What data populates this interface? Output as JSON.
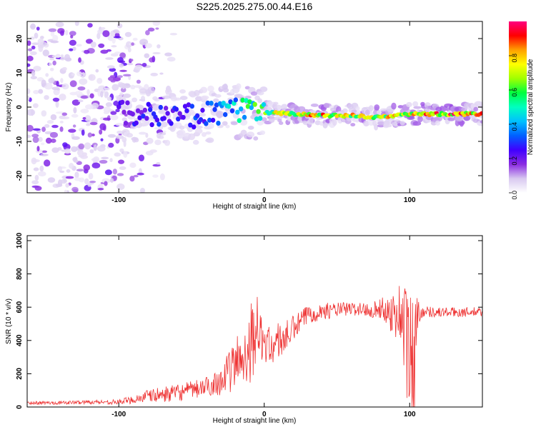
{
  "figure_title": "S225.2025.275.00.44.E16",
  "colorbar": {
    "label": "Normalized spectral amplitude",
    "ticks": [
      "0.0",
      "0.2",
      "0.4",
      "0.6",
      "0.8"
    ],
    "tick_values": [
      0.0,
      0.2,
      0.4,
      0.6,
      0.8
    ],
    "range": [
      0.0,
      1.0
    ],
    "colors": [
      "#ffffff",
      "#d8c8f0",
      "#8a2be2",
      "#4000ff",
      "#0060ff",
      "#00c0ff",
      "#00ffc0",
      "#00ff40",
      "#a0ff00",
      "#ffff00",
      "#ffa000",
      "#ff0000",
      "#ff0080"
    ]
  },
  "chart_data": [
    {
      "type": "heatmap",
      "title": "",
      "xlabel": "Height of straight line (km)",
      "ylabel": "Frequency (Hz)",
      "xlim": [
        -163,
        150
      ],
      "ylim": [
        -25,
        25
      ],
      "xticks": [
        -100,
        0,
        100
      ],
      "xtick_labels": [
        "-100",
        "0",
        "100"
      ],
      "yticks": [
        -20,
        -10,
        0,
        10,
        20
      ],
      "ytick_labels": [
        "-20",
        "-10",
        "0",
        "10",
        "20"
      ],
      "ridge": {
        "description": "narrow high-amplitude band",
        "x": [
          -100,
          -80,
          -60,
          -40,
          -20,
          0,
          20,
          40,
          60,
          80,
          100,
          120,
          150
        ],
        "frequency": [
          -1,
          -2,
          -3,
          -2,
          -1,
          -1.5,
          -2,
          -2.5,
          -2.5,
          -3,
          -2,
          -2,
          -2
        ],
        "amplitude": [
          0.25,
          0.3,
          0.3,
          0.35,
          0.5,
          0.7,
          0.85,
          0.9,
          0.85,
          0.8,
          0.9,
          0.95,
          0.95
        ]
      },
      "noise_region_x": [
        -163,
        -100
      ]
    },
    {
      "type": "line",
      "title": "",
      "xlabel": "Height of straight line (km)",
      "ylabel": "SNR (10 * v/v)",
      "xlim": [
        -163,
        150
      ],
      "ylim": [
        0,
        1030
      ],
      "xticks": [
        -100,
        0,
        100
      ],
      "xtick_labels": [
        "-100",
        "0",
        "100"
      ],
      "yticks": [
        0,
        200,
        400,
        600,
        800,
        1000
      ],
      "ytick_labels": [
        "0",
        "200",
        "400",
        "600",
        "800",
        "1000"
      ],
      "series": [
        {
          "name": "SNR",
          "color": "#ee3333",
          "x": [
            -163,
            -140,
            -120,
            -100,
            -90,
            -80,
            -70,
            -60,
            -50,
            -40,
            -35,
            -30,
            -25,
            -20,
            -15,
            -10,
            -7,
            -5,
            -3,
            0,
            5,
            10,
            15,
            20,
            25,
            30,
            40,
            50,
            60,
            70,
            80,
            85,
            90,
            95,
            98,
            100,
            102,
            103,
            104,
            105,
            107,
            110,
            120,
            130,
            140,
            150
          ],
          "y": [
            25,
            25,
            30,
            30,
            45,
            65,
            75,
            85,
            100,
            120,
            140,
            160,
            200,
            260,
            300,
            380,
            450,
            500,
            420,
            390,
            360,
            400,
            420,
            470,
            510,
            560,
            575,
            585,
            590,
            585,
            590,
            580,
            555,
            570,
            350,
            300,
            250,
            400,
            300,
            550,
            570,
            575,
            570,
            570,
            570,
            570
          ],
          "spread": [
            10,
            10,
            12,
            15,
            25,
            40,
            45,
            50,
            55,
            60,
            70,
            90,
            120,
            160,
            200,
            240,
            250,
            180,
            150,
            120,
            110,
            120,
            100,
            80,
            70,
            60,
            50,
            45,
            40,
            45,
            60,
            100,
            150,
            220,
            420,
            460,
            500,
            420,
            380,
            150,
            50,
            35,
            30,
            30,
            30,
            30
          ]
        }
      ]
    }
  ]
}
